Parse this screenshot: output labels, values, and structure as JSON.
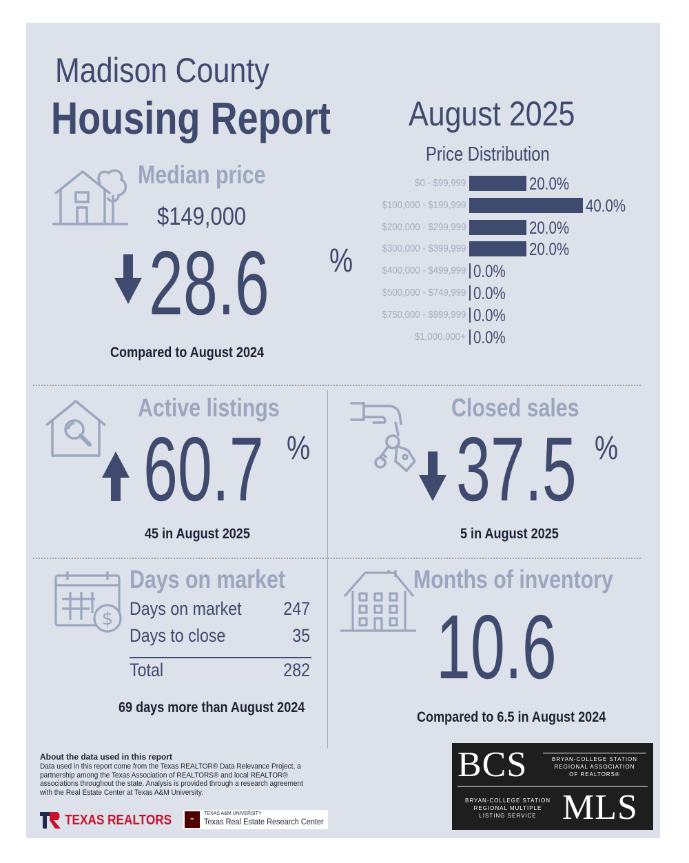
{
  "header": {
    "county": "Madison County",
    "report": "Housing Report",
    "month": "August 2025"
  },
  "median_price": {
    "heading": "Median price",
    "price": "$149,000",
    "change": "28.6",
    "pct_sign": "%",
    "direction": "down",
    "note": "Compared to August 2024"
  },
  "price_distribution": {
    "title": "Price Distribution",
    "rows": [
      {
        "range": "$0 - $99,999",
        "value": "20.0%",
        "pct": 20.0
      },
      {
        "range": "$100,000 - $199,999",
        "value": "40.0%",
        "pct": 40.0
      },
      {
        "range": "$200,000 - $299,999",
        "value": "20.0%",
        "pct": 20.0
      },
      {
        "range": "$300,000 - $399,999",
        "value": "20.0%",
        "pct": 20.0
      },
      {
        "range": "$400,000 - $499,999",
        "value": "0.0%",
        "pct": 0.0
      },
      {
        "range": "$500,000 - $749,999",
        "value": "0.0%",
        "pct": 0.0
      },
      {
        "range": "$750,000 - $999,999",
        "value": "0.0%",
        "pct": 0.0
      },
      {
        "range": "$1,000,000+",
        "value": "0.0%",
        "pct": 0.0
      }
    ]
  },
  "active_listings": {
    "heading": "Active listings",
    "change": "60.7",
    "pct_sign": "%",
    "direction": "up",
    "note": "45 in August 2025"
  },
  "closed_sales": {
    "heading": "Closed sales",
    "change": "37.5",
    "pct_sign": "%",
    "direction": "down",
    "note": "5 in August 2025"
  },
  "days_on_market": {
    "heading": "Days on market",
    "rows": [
      {
        "label": "Days on market",
        "value": "247"
      },
      {
        "label": "Days to close",
        "value": "35"
      }
    ],
    "total_label": "Total",
    "total_value": "282",
    "note": "69 days more than August 2024"
  },
  "months_inventory": {
    "heading": "Months of inventory",
    "value": "10.6",
    "note": "Compared to 6.5 in August 2024"
  },
  "about": {
    "heading": "About the data used in this report",
    "text": "Data used in this report come from the Texas REALTOR® Data Relevance Project, a partnership among the Texas Association of REALTORS® and local REALTOR® associations throughout the state. Analysis is provided through a research agreement with the Real Estate Center at Texas A&M University."
  },
  "logos": {
    "texas_realtors": "TEXAS REALTORS",
    "tamu_small": "TEXAS A&M UNIVERSITY",
    "recenter": "Texas Real Estate Research Center",
    "bcs": "BCS",
    "bcs_text": [
      "BRYAN-COLLEGE STATION",
      "REGIONAL ASSOCIATION",
      "OF REALTORS®"
    ],
    "mls": "MLS",
    "mls_text": [
      "BRYAN-COLLEGE STATION",
      "REGIONAL MULTIPLE",
      "LISTING SERVICE"
    ]
  },
  "colors": {
    "navy": "#3e4a6e",
    "muted": "#9aa7bf",
    "background": "#dde1e9",
    "icon": "#9aa7bf",
    "logo_bg": "#1e1e1e",
    "texas_red": "#c8102e",
    "aggie_maroon": "#500000"
  }
}
